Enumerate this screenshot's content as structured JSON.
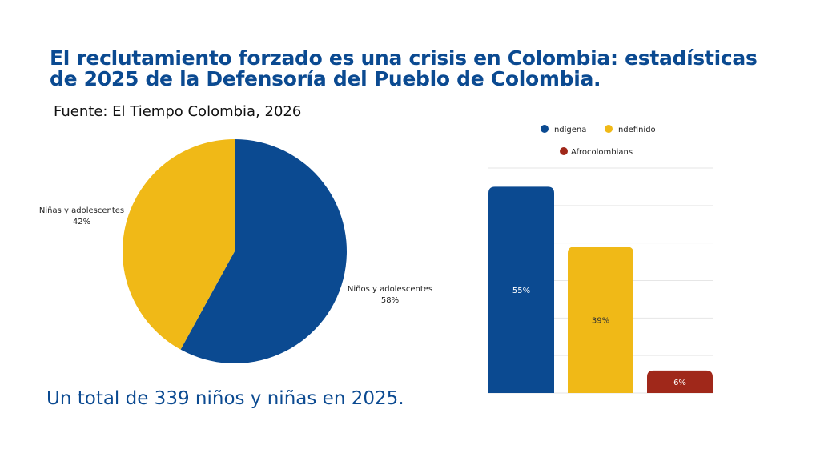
{
  "title_lines": [
    "El reclutamiento forzado es una crisis en Colombia: estadísticas",
    "de 2025 de la Defensoría del Pueblo de Colombia."
  ],
  "source": "Fuente: El Tiempo Colombia, 2026",
  "total_text": "Un total de 339 niños y niñas en 2025.",
  "chart_data": [
    {
      "type": "pie",
      "slices": [
        {
          "label": "Niños y adolescentes",
          "value": 58,
          "value_label": "58%",
          "color": "#0b4a91"
        },
        {
          "label": "Niñas y adolescentes",
          "value": 42,
          "value_label": "42%",
          "color": "#f0b917"
        }
      ],
      "start": "top",
      "direction": "clockwise"
    },
    {
      "type": "bar",
      "categories": [
        "Indígena",
        "Indefinido",
        "Afrocolombians"
      ],
      "values": [
        55,
        39,
        6
      ],
      "value_labels": [
        "55%",
        "39%",
        "6%"
      ],
      "colors": [
        "#0b4a91",
        "#f0b917",
        "#a0281a"
      ],
      "label_colors": [
        "#ffffff",
        "#333333",
        "#ffffff"
      ],
      "ylim": [
        0,
        60
      ],
      "grid": true,
      "axis_labels_shown": false,
      "legend": {
        "placement": "top",
        "entries": [
          "Indígena",
          "Indefinido",
          "Afrocolombians"
        ]
      }
    }
  ]
}
